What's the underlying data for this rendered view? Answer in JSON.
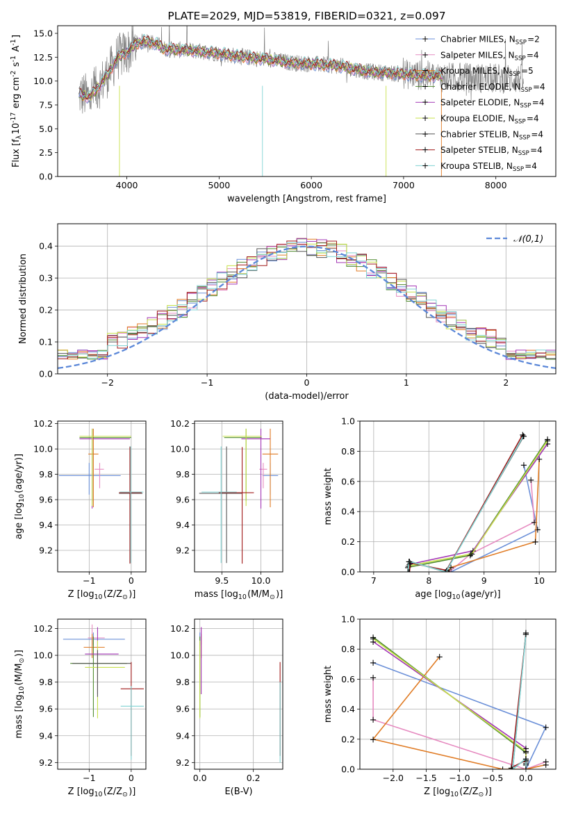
{
  "figure": {
    "title": "PLATE=2029, MJD=53819, FIBERID=0321, z=0.097"
  },
  "series_meta": [
    {
      "name": "Chabrier MILES, N$_{SSP}$=2",
      "color": "#6a8fd8"
    },
    {
      "name": "Salpeter MILES, N$_{SSP}$=4",
      "color": "#e68ac0"
    },
    {
      "name": "Kroupa MILES, N$_{SSP}$=5",
      "color": "#e07b24"
    },
    {
      "name": "Chabrier ELODIE, N$_{SSP}$=4",
      "color": "#4f8a2f"
    },
    {
      "name": "Salpeter ELODIE, N$_{SSP}$=4",
      "color": "#a234b5"
    },
    {
      "name": "Kroupa ELODIE, N$_{SSP}$=4",
      "color": "#c7e04a"
    },
    {
      "name": "Chabrier STELIB, N$_{SSP}$=4",
      "color": "#555555"
    },
    {
      "name": "Salpeter STELIB, N$_{SSP}$=4",
      "color": "#a01818"
    },
    {
      "name": "Kroupa STELIB, N$_{SSP}$=4",
      "color": "#7fd3d3"
    }
  ],
  "chart_data": [
    {
      "type": "line",
      "title": "PLATE=2029, MJD=53819, FIBERID=0321, z=0.097",
      "xlabel": "wavelength [Angstrom, rest frame]",
      "ylabel": "Flux [f$_\\lambda$10$^{-17}$ erg cm$^{-2}$ s$^{-1}$ A$^{-1}$]",
      "xlim": [
        3250,
        8650
      ],
      "ylim": [
        0,
        15.8
      ],
      "xticks": [
        4000,
        5000,
        6000,
        7000,
        8000
      ],
      "yticks": [
        0.0,
        2.5,
        5.0,
        7.5,
        10.0,
        12.5,
        15.0
      ],
      "legend": "upper right",
      "data_color": "#808080",
      "series_data": {
        "name": "data",
        "color": "#808080"
      },
      "model_profile": {
        "x": [
          3450,
          3500,
          3600,
          3700,
          3800,
          3900,
          4000,
          4100,
          4200,
          4300,
          4400,
          4500,
          4700,
          5000,
          5200,
          5500,
          5800,
          6000,
          6300,
          6600,
          6900,
          7200,
          7400
        ],
        "y": [
          8.4,
          8.6,
          8.3,
          9.5,
          10.8,
          12.5,
          13.0,
          13.9,
          14.2,
          14.0,
          13.4,
          13.3,
          13.2,
          12.9,
          12.6,
          12.3,
          11.9,
          11.8,
          11.6,
          11.0,
          10.8,
          10.6,
          10.5
        ]
      }
    },
    {
      "type": "line",
      "xlabel": "(data-model)/error",
      "ylabel": "Normed distribution",
      "xlim": [
        -2.5,
        2.5
      ],
      "ylim": [
        0,
        0.47
      ],
      "xticks": [
        -2,
        -1,
        0,
        1,
        2
      ],
      "yticks": [
        0.0,
        0.1,
        0.2,
        0.3,
        0.4
      ],
      "grid": true,
      "legend": "upper right",
      "reference_curve": {
        "name": "$\\mathcal{N}(0,1)$",
        "color": "#5b87d8",
        "style": "dashed"
      },
      "hist_bin_width": 0.1,
      "hist_range": [
        -2.5,
        2.5
      ]
    },
    {
      "type": "scatter",
      "xlabel": "Z [log$_{10}$(Z/Z$_\\odot$)]",
      "ylabel": "age  [log$_{10}$(age/yr)]",
      "xlim": [
        -1.75,
        0.35
      ],
      "ylim": [
        9.03,
        10.22
      ],
      "xticks": [
        -1,
        0
      ],
      "yticks": [
        9.2,
        9.4,
        9.6,
        9.8,
        10.0,
        10.2
      ],
      "grid": true,
      "points": [
        {
          "s": 0,
          "x": -1.0,
          "y": 9.79,
          "xerr": [
            0.72,
            0.75
          ],
          "yerr": [
            0.15,
            0.1
          ]
        },
        {
          "s": 1,
          "x": -0.75,
          "y": 9.84,
          "xerr": [
            0.12,
            0.1
          ],
          "yerr": [
            0.15,
            0.05
          ]
        },
        {
          "s": 2,
          "x": -0.9,
          "y": 9.96,
          "xerr": [
            0.12,
            0.12
          ],
          "yerr": [
            0.42,
            0.2
          ]
        },
        {
          "s": 3,
          "x": -0.93,
          "y": 10.09,
          "xerr": [
            0.3,
            0.93
          ],
          "yerr": [
            0.5,
            0.07
          ]
        },
        {
          "s": 4,
          "x": -0.93,
          "y": 10.08,
          "xerr": [
            0.3,
            0.9
          ],
          "yerr": [
            0.55,
            0.08
          ]
        },
        {
          "s": 5,
          "x": -0.93,
          "y": 10.1,
          "xerr": [
            0.3,
            0.93
          ],
          "yerr": [
            0.55,
            0.06
          ]
        },
        {
          "s": 6,
          "x": -0.03,
          "y": 9.65,
          "xerr": [
            0.26,
            0.3
          ],
          "yerr": [
            0.55,
            0.37
          ]
        },
        {
          "s": 7,
          "x": -0.03,
          "y": 9.655,
          "xerr": [
            0.26,
            0.28
          ],
          "yerr": [
            0.56,
            0.36
          ]
        },
        {
          "s": 8,
          "x": -0.01,
          "y": 9.66,
          "xerr": [
            0.26,
            0.3
          ],
          "yerr": [
            0.56,
            0.36
          ]
        }
      ]
    },
    {
      "type": "scatter",
      "xlabel": "mass [log$_{10}$(M/M$_\\odot$)]",
      "ylabel": "",
      "xlim": [
        9.15,
        10.28
      ],
      "ylim": [
        9.03,
        10.22
      ],
      "xticks": [
        9.5,
        10.0
      ],
      "yticks": [
        9.2,
        9.4,
        9.6,
        9.8,
        10.0,
        10.2
      ],
      "grid": true,
      "points": [
        {
          "s": 0,
          "x": 10.12,
          "y": 9.79,
          "xerr": [
            0.1,
            0.1
          ],
          "yerr": [
            0.15,
            0.1
          ]
        },
        {
          "s": 1,
          "x": 10.03,
          "y": 9.84,
          "xerr": [
            0.05,
            0.05
          ],
          "yerr": [
            0.15,
            0.05
          ]
        },
        {
          "s": 2,
          "x": 10.12,
          "y": 9.96,
          "xerr": [
            0.1,
            0.1
          ],
          "yerr": [
            0.42,
            0.2
          ]
        },
        {
          "s": 3,
          "x": 9.81,
          "y": 10.09,
          "xerr": [
            0.28,
            0.2
          ],
          "yerr": [
            0.5,
            0.07
          ]
        },
        {
          "s": 4,
          "x": 10.0,
          "y": 10.08,
          "xerr": [
            0.25,
            0.12
          ],
          "yerr": [
            0.55,
            0.08
          ]
        },
        {
          "s": 5,
          "x": 9.81,
          "y": 10.1,
          "xerr": [
            0.3,
            0.2
          ],
          "yerr": [
            0.55,
            0.06
          ]
        },
        {
          "s": 6,
          "x": 9.56,
          "y": 9.65,
          "xerr": [
            0.35,
            0.2
          ],
          "yerr": [
            0.55,
            0.37
          ]
        },
        {
          "s": 7,
          "x": 9.76,
          "y": 9.655,
          "xerr": [
            0.3,
            0.15
          ],
          "yerr": [
            0.56,
            0.36
          ]
        },
        {
          "s": 8,
          "x": 9.49,
          "y": 9.66,
          "xerr": [
            0.25,
            0.2
          ],
          "yerr": [
            0.56,
            0.36
          ]
        }
      ]
    },
    {
      "type": "line",
      "xlabel": "age  [log$_{10}$(age/yr)]",
      "ylabel": "mass weight",
      "xlim": [
        6.75,
        10.3
      ],
      "ylim": [
        0,
        1
      ],
      "xticks": [
        7,
        8,
        9,
        10
      ],
      "yticks": [
        0.0,
        0.2,
        0.4,
        0.6,
        0.8,
        1.0
      ],
      "grid": true,
      "series": [
        {
          "s": 0,
          "x": [
            9.72,
            9.97,
            8.4
          ],
          "y": [
            0.71,
            0.28,
            0.0
          ]
        },
        {
          "s": 1,
          "x": [
            9.85,
            9.91,
            8.76,
            8.37
          ],
          "y": [
            0.61,
            0.33,
            0.12,
            0.0
          ]
        },
        {
          "s": 2,
          "x": [
            10.0,
            9.93,
            8.4,
            8.35,
            8.37
          ],
          "y": [
            0.75,
            0.2,
            0.03,
            0.0,
            0.0
          ]
        },
        {
          "s": 3,
          "x": [
            10.15,
            8.75,
            7.62,
            7.64
          ],
          "y": [
            0.88,
            0.11,
            0.03,
            0.0
          ]
        },
        {
          "s": 4,
          "x": [
            10.15,
            8.8,
            7.65,
            7.64
          ],
          "y": [
            0.85,
            0.14,
            0.05,
            0.0
          ]
        },
        {
          "s": 5,
          "x": [
            10.15,
            8.78,
            7.63,
            7.64
          ],
          "y": [
            0.87,
            0.12,
            0.04,
            0.0
          ]
        },
        {
          "s": 6,
          "x": [
            9.72,
            8.3,
            7.65,
            7.63
          ],
          "y": [
            0.9,
            0.0,
            0.07,
            0.0
          ]
        },
        {
          "s": 7,
          "x": [
            9.7,
            8.32,
            7.66,
            7.65
          ],
          "y": [
            0.91,
            0.01,
            0.06,
            0.0
          ]
        },
        {
          "s": 8,
          "x": [
            9.71,
            8.31,
            7.64,
            7.62
          ],
          "y": [
            0.9,
            0.0,
            0.07,
            0.0
          ]
        }
      ]
    },
    {
      "type": "scatter",
      "xlabel": "Z [log$_{10}$(Z/Z$_\\odot$)]",
      "ylabel": "mass [log$_{10}$(M/M$_\\odot$)]",
      "xlim": [
        -1.75,
        0.35
      ],
      "ylim": [
        9.15,
        10.27
      ],
      "xticks": [
        -1,
        0
      ],
      "yticks": [
        9.2,
        9.4,
        9.6,
        9.8,
        10.0,
        10.2
      ],
      "grid": true,
      "points": [
        {
          "s": 0,
          "x": -0.9,
          "y": 10.12,
          "xerr": [
            0.72,
            0.75
          ],
          "yerr": [
            0.05,
            0.05
          ]
        },
        {
          "s": 1,
          "x": -0.93,
          "y": 10.13,
          "xerr": [
            0.1,
            0.3
          ],
          "yerr": [
            0.05,
            0.1
          ]
        },
        {
          "s": 2,
          "x": -0.93,
          "y": 10.06,
          "xerr": [
            0.2,
            0.3
          ],
          "yerr": [
            0.08,
            0.1
          ]
        },
        {
          "s": 3,
          "x": -0.9,
          "y": 9.94,
          "xerr": [
            0.55,
            0.8
          ],
          "yerr": [
            0.4,
            0.2
          ]
        },
        {
          "s": 4,
          "x": -0.8,
          "y": 10.01,
          "xerr": [
            0.3,
            0.5
          ],
          "yerr": [
            0.3,
            0.2
          ]
        },
        {
          "s": 5,
          "x": -0.8,
          "y": 9.91,
          "xerr": [
            0.3,
            0.65
          ],
          "yerr": [
            0.38,
            0.2
          ]
        },
        {
          "s": 6,
          "x": -0.8,
          "y": 9.94,
          "xerr": [
            0.6,
            0.8
          ],
          "yerr": [
            0.25,
            0.1
          ]
        },
        {
          "s": 7,
          "x": 0.0,
          "y": 9.75,
          "xerr": [
            0.25,
            0.3
          ],
          "yerr": [
            0.5,
            0.2
          ]
        },
        {
          "s": 8,
          "x": 0.0,
          "y": 9.62,
          "xerr": [
            0.25,
            0.3
          ],
          "yerr": [
            0.4,
            0.15
          ]
        }
      ]
    },
    {
      "type": "scatter",
      "xlabel": "E(B-V)",
      "ylabel": "",
      "xlim": [
        -0.02,
        0.31
      ],
      "ylim": [
        9.15,
        10.27
      ],
      "xticks": [
        0.0,
        0.2
      ],
      "yticks": [
        9.2,
        9.4,
        9.6,
        9.8,
        10.0,
        10.2
      ],
      "grid": true,
      "points": [
        {
          "s": 0,
          "x": 0.0,
          "y": 10.12,
          "xerr": [
            0,
            0
          ],
          "yerr": [
            0.05,
            0.05
          ]
        },
        {
          "s": 1,
          "x": 0.005,
          "y": 10.13,
          "xerr": [
            0,
            0
          ],
          "yerr": [
            0.05,
            0.08
          ]
        },
        {
          "s": 2,
          "x": 0.005,
          "y": 10.06,
          "xerr": [
            0,
            0
          ],
          "yerr": [
            0.08,
            0.1
          ]
        },
        {
          "s": 3,
          "x": 0.0,
          "y": 9.94,
          "xerr": [
            0,
            0
          ],
          "yerr": [
            0.4,
            0.2
          ]
        },
        {
          "s": 4,
          "x": 0.005,
          "y": 10.01,
          "xerr": [
            0,
            0
          ],
          "yerr": [
            0.3,
            0.2
          ]
        },
        {
          "s": 5,
          "x": 0.0,
          "y": 9.91,
          "xerr": [
            0,
            0
          ],
          "yerr": [
            0.38,
            0.2
          ]
        },
        {
          "s": 6,
          "x": 0.3,
          "y": 9.7,
          "xerr": [
            0,
            0
          ],
          "yerr": [
            0.45,
            0.1
          ]
        },
        {
          "s": 7,
          "x": 0.3,
          "y": 9.75,
          "xerr": [
            0,
            0
          ],
          "yerr": [
            0.5,
            0.2
          ]
        },
        {
          "s": 8,
          "x": 0.3,
          "y": 9.6,
          "xerr": [
            0,
            0
          ],
          "yerr": [
            0.4,
            0.2
          ]
        }
      ]
    },
    {
      "type": "line",
      "xlabel": "Z [log$_{10}$(Z/Z$_\\odot$)]",
      "ylabel": "mass weight",
      "xlim": [
        -2.5,
        0.45
      ],
      "ylim": [
        0,
        1
      ],
      "xticks": [
        -2.0,
        -1.5,
        -1.0,
        -0.5,
        0.0
      ],
      "yticks": [
        0.0,
        0.2,
        0.4,
        0.6,
        0.8,
        1.0
      ],
      "grid": true,
      "series": [
        {
          "s": 0,
          "x": [
            -2.3,
            0.3,
            -0.0
          ],
          "y": [
            0.71,
            0.28,
            0.0
          ]
        },
        {
          "s": 1,
          "x": [
            -2.3,
            -2.3,
            0.0,
            0.3
          ],
          "y": [
            0.61,
            0.33,
            0.0,
            0.05
          ]
        },
        {
          "s": 2,
          "x": [
            -1.3,
            -2.3,
            -0.35,
            0.0,
            0.3
          ],
          "y": [
            0.75,
            0.2,
            0.0,
            0.0,
            0.03
          ]
        },
        {
          "s": 3,
          "x": [
            -2.3,
            0.0,
            0.0,
            0.0
          ],
          "y": [
            0.88,
            0.11,
            0.03,
            0.0
          ]
        },
        {
          "s": 4,
          "x": [
            -2.3,
            0.0,
            0.0,
            0.0
          ],
          "y": [
            0.85,
            0.14,
            0.05,
            0.0
          ]
        },
        {
          "s": 5,
          "x": [
            -2.3,
            0.0,
            0.0,
            0.0
          ],
          "y": [
            0.87,
            0.12,
            0.04,
            0.0
          ]
        },
        {
          "s": 6,
          "x": [
            0.0,
            -0.2,
            0.0,
            0.0
          ],
          "y": [
            0.91,
            0.0,
            0.07,
            0.0
          ]
        },
        {
          "s": 7,
          "x": [
            0.0,
            -0.22,
            0.0,
            0.0
          ],
          "y": [
            0.9,
            0.01,
            0.06,
            0.0
          ]
        },
        {
          "s": 8,
          "x": [
            0.0,
            -0.2,
            0.0,
            0.0
          ],
          "y": [
            0.9,
            0.0,
            0.07,
            0.0
          ]
        }
      ]
    }
  ]
}
